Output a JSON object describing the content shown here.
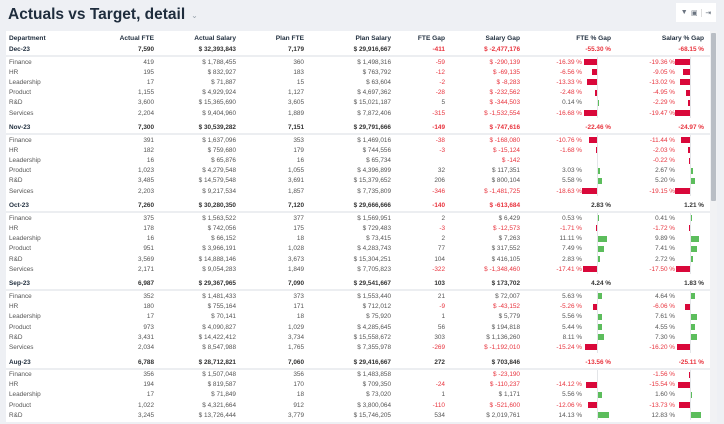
{
  "header": {
    "title": "Actuals vs Target, detail",
    "chevron_icon": "chevron-down-icon",
    "toolbar_icons": [
      "filter-icon",
      "comment-icon",
      "export-icon"
    ]
  },
  "colors": {
    "negative": "#e8333d",
    "bar_negative": "#d9083a",
    "bar_positive": "#5cbd5c"
  },
  "columns": [
    "Department",
    "Actual FTE",
    "Actual Salary",
    "Plan FTE",
    "Plan Salary",
    "FTE Gap",
    "Salary Gap",
    "FTE % Gap",
    "Salary % Gap"
  ],
  "groups": [
    {
      "period": "Dec-23",
      "values": [
        "7,590",
        "$ 32,393,843",
        "7,179",
        "$ 29,916,667",
        "-411",
        "$ -2,477,176",
        "-55.30 %",
        "-68.15 %"
      ],
      "rows": [
        {
          "department": "Finance",
          "values": [
            "419",
            "$ 1,788,455",
            "360",
            "$ 1,498,316",
            "-59",
            "$ -290,139",
            "-16.39 %",
            "-19.36 %"
          ]
        },
        {
          "department": "HR",
          "values": [
            "195",
            "$ 832,927",
            "183",
            "$ 763,792",
            "-12",
            "$ -69,135",
            "-6.56 %",
            "-9.05 %"
          ]
        },
        {
          "department": "Leadership",
          "values": [
            "17",
            "$ 71,887",
            "15",
            "$ 63,604",
            "-2",
            "$ -8,283",
            "-13.33 %",
            "-13.02 %"
          ]
        },
        {
          "department": "Product",
          "values": [
            "1,155",
            "$ 4,929,924",
            "1,127",
            "$ 4,697,362",
            "-28",
            "$ -232,562",
            "-2.48 %",
            "-4.95 %"
          ]
        },
        {
          "department": "R&D",
          "values": [
            "3,600",
            "$ 15,365,690",
            "3,605",
            "$ 15,021,187",
            "5",
            "$ -344,503",
            "0.14 %",
            "-2.29 %"
          ]
        },
        {
          "department": "Services",
          "values": [
            "2,204",
            "$ 9,404,960",
            "1,889",
            "$ 7,872,406",
            "-315",
            "$ -1,532,554",
            "-16.68 %",
            "-19.47 %"
          ]
        }
      ]
    },
    {
      "period": "Nov-23",
      "values": [
        "7,300",
        "$ 30,539,282",
        "7,151",
        "$ 29,791,666",
        "-149",
        "$ -747,616",
        "-22.46 %",
        "-24.97 %"
      ],
      "rows": [
        {
          "department": "Finance",
          "values": [
            "391",
            "$ 1,637,096",
            "353",
            "$ 1,469,016",
            "-38",
            "$ -168,080",
            "-10.76 %",
            "-11.44 %"
          ]
        },
        {
          "department": "HR",
          "values": [
            "182",
            "$ 759,680",
            "179",
            "$ 744,556",
            "-3",
            "$ -15,124",
            "-1.68 %",
            "-2.03 %"
          ]
        },
        {
          "department": "Leadership",
          "values": [
            "16",
            "$ 65,876",
            "16",
            "$ 65,734",
            "",
            "$ -142",
            "",
            "-0.22 %"
          ]
        },
        {
          "department": "Product",
          "values": [
            "1,023",
            "$ 4,279,548",
            "1,055",
            "$ 4,396,899",
            "32",
            "$ 117,351",
            "3.03 %",
            "2.67 %"
          ]
        },
        {
          "department": "R&D",
          "values": [
            "3,485",
            "$ 14,579,548",
            "3,691",
            "$ 15,379,652",
            "206",
            "$ 800,104",
            "5.58 %",
            "5.20 %"
          ]
        },
        {
          "department": "Services",
          "values": [
            "2,203",
            "$ 9,217,534",
            "1,857",
            "$ 7,735,809",
            "-346",
            "$ -1,481,725",
            "-18.63 %",
            "-19.15 %"
          ]
        }
      ]
    },
    {
      "period": "Oct-23",
      "values": [
        "7,260",
        "$ 30,280,350",
        "7,120",
        "$ 29,666,666",
        "-140",
        "$ -613,684",
        "2.83 %",
        "1.21 %"
      ],
      "rows": [
        {
          "department": "Finance",
          "values": [
            "375",
            "$ 1,563,522",
            "377",
            "$ 1,569,951",
            "2",
            "$ 6,429",
            "0.53 %",
            "0.41 %"
          ]
        },
        {
          "department": "HR",
          "values": [
            "178",
            "$ 742,056",
            "175",
            "$ 729,483",
            "-3",
            "$ -12,573",
            "-1.71 %",
            "-1.72 %"
          ]
        },
        {
          "department": "Leadership",
          "values": [
            "16",
            "$ 66,152",
            "18",
            "$ 73,415",
            "2",
            "$ 7,263",
            "11.11 %",
            "9.89 %"
          ]
        },
        {
          "department": "Product",
          "values": [
            "951",
            "$ 3,966,191",
            "1,028",
            "$ 4,283,743",
            "77",
            "$ 317,552",
            "7.49 %",
            "7.41 %"
          ]
        },
        {
          "department": "R&D",
          "values": [
            "3,569",
            "$ 14,888,146",
            "3,673",
            "$ 15,304,251",
            "104",
            "$ 416,105",
            "2.83 %",
            "2.72 %"
          ]
        },
        {
          "department": "Services",
          "values": [
            "2,171",
            "$ 9,054,283",
            "1,849",
            "$ 7,705,823",
            "-322",
            "$ -1,348,460",
            "-17.41 %",
            "-17.50 %"
          ]
        }
      ]
    },
    {
      "period": "Sep-23",
      "values": [
        "6,987",
        "$ 29,367,965",
        "7,090",
        "$ 29,541,667",
        "103",
        "$ 173,702",
        "4.24 %",
        "1.83 %"
      ],
      "rows": [
        {
          "department": "Finance",
          "values": [
            "352",
            "$ 1,481,433",
            "373",
            "$ 1,553,440",
            "21",
            "$ 72,007",
            "5.63 %",
            "4.64 %"
          ]
        },
        {
          "department": "HR",
          "values": [
            "180",
            "$ 755,164",
            "171",
            "$ 712,012",
            "-9",
            "$ -43,152",
            "-5.26 %",
            "-6.06 %"
          ]
        },
        {
          "department": "Leadership",
          "values": [
            "17",
            "$ 70,141",
            "18",
            "$ 75,920",
            "1",
            "$ 5,779",
            "5.56 %",
            "7.61 %"
          ]
        },
        {
          "department": "Product",
          "values": [
            "973",
            "$ 4,090,827",
            "1,029",
            "$ 4,285,645",
            "56",
            "$ 194,818",
            "5.44 %",
            "4.55 %"
          ]
        },
        {
          "department": "R&D",
          "values": [
            "3,431",
            "$ 14,422,412",
            "3,734",
            "$ 15,558,672",
            "303",
            "$ 1,136,260",
            "8.11 %",
            "7.30 %"
          ]
        },
        {
          "department": "Services",
          "values": [
            "2,034",
            "$ 8,547,988",
            "1,765",
            "$ 7,355,978",
            "-269",
            "$ -1,192,010",
            "-15.24 %",
            "-16.20 %"
          ]
        }
      ]
    },
    {
      "period": "Aug-23",
      "values": [
        "6,788",
        "$ 28,712,821",
        "7,060",
        "$ 29,416,667",
        "272",
        "$ 703,846",
        "-13.56 %",
        "-25.11 %"
      ],
      "rows": [
        {
          "department": "Finance",
          "values": [
            "356",
            "$ 1,507,048",
            "356",
            "$ 1,483,858",
            "",
            "$ -23,190",
            "",
            "-1.56 %"
          ]
        },
        {
          "department": "HR",
          "values": [
            "194",
            "$ 819,587",
            "170",
            "$ 709,350",
            "-24",
            "$ -110,237",
            "-14.12 %",
            "-15.54 %"
          ]
        },
        {
          "department": "Leadership",
          "values": [
            "17",
            "$ 71,849",
            "18",
            "$ 73,020",
            "1",
            "$ 1,171",
            "5.56 %",
            "1.60 %"
          ]
        },
        {
          "department": "Product",
          "values": [
            "1,022",
            "$ 4,321,664",
            "912",
            "$ 3,800,064",
            "-110",
            "$ -521,600",
            "-12.06 %",
            "-13.73 %"
          ]
        },
        {
          "department": "R&D",
          "values": [
            "3,245",
            "$ 13,726,444",
            "3,779",
            "$ 15,746,205",
            "534",
            "$ 2,019,761",
            "14.13 %",
            "12.83 %"
          ]
        }
      ]
    }
  ]
}
